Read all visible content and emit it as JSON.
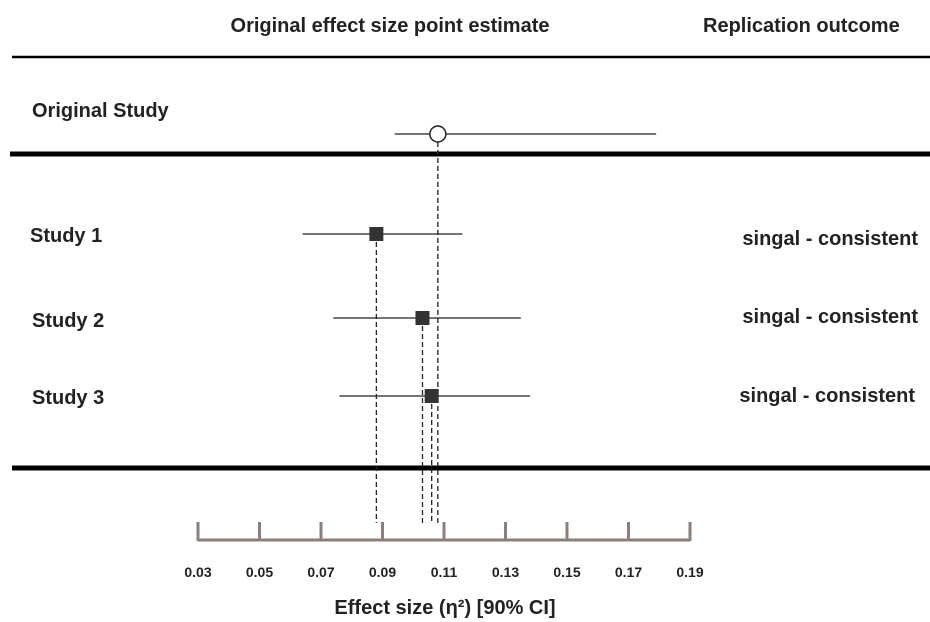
{
  "chart_data": {
    "type": "forest",
    "column_headers": {
      "left": "Original effect size point estimate",
      "right": "Replication outcome"
    },
    "xlabel": "Effect size (η²) [90% CI]",
    "xlim": [
      0.03,
      0.19
    ],
    "ticks": [
      "0.03",
      "0.05",
      "0.07",
      "0.09",
      "0.11",
      "0.13",
      "0.15",
      "0.17",
      "0.19"
    ],
    "rows": [
      {
        "label": "Original Study",
        "estimate": 0.108,
        "ci_low": 0.094,
        "ci_high": 0.179,
        "marker": "open-circle",
        "outcome": ""
      },
      {
        "label": "Study 1",
        "estimate": 0.088,
        "ci_low": 0.064,
        "ci_high": 0.116,
        "marker": "filled-square",
        "outcome": "singal - consistent"
      },
      {
        "label": "Study 2",
        "estimate": 0.103,
        "ci_low": 0.074,
        "ci_high": 0.135,
        "marker": "filled-square",
        "outcome": "singal - consistent"
      },
      {
        "label": "Study 3",
        "estimate": 0.106,
        "ci_low": 0.076,
        "ci_high": 0.138,
        "marker": "filled-square",
        "outcome": "singal - consistent"
      }
    ],
    "colors": {
      "ink": "#222222",
      "axis": "#8c7f7a",
      "marker_fill": "#333333"
    }
  }
}
